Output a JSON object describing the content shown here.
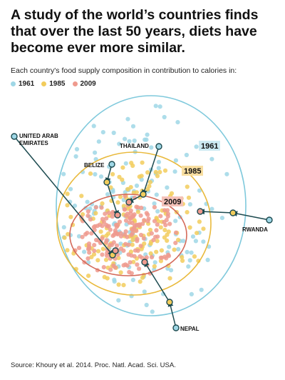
{
  "title": "A study of the world’s countries finds that over the last 50 years, diets have become ever more similar.",
  "subtitle": "Each country's food supply composition in contribution to calories in:",
  "source": "Source: Khoury et al. 2014. Proc. Natl. Acad. Sci. USA.",
  "colors": {
    "y1961": "#9fd7e6",
    "y1985": "#f2cc5c",
    "y2009": "#ef9a8e",
    "ring1961": "#7fc9dc",
    "ring1985": "#e9b93b",
    "ring2009": "#d46a5a",
    "arrow": "#1c4a4f"
  },
  "chart_data": {
    "type": "scatter",
    "series": [
      {
        "name": "1961",
        "color": "#9fd7e6"
      },
      {
        "name": "1985",
        "color": "#f2cc5c"
      },
      {
        "name": "2009",
        "color": "#ef9a8e"
      }
    ],
    "rings": [
      {
        "label": "1961",
        "color": "#7fc9dc"
      },
      {
        "label": "1985",
        "color": "#e9b93b"
      },
      {
        "label": "2009",
        "color": "#d46a5a"
      }
    ],
    "countries": [
      {
        "label": "UNITED ARAB EMIRATES",
        "label_lines": [
          "UNITED ARAB",
          "EMIRATES"
        ]
      },
      {
        "label": "BELIZE",
        "label_lines": [
          "BELIZE"
        ]
      },
      {
        "label": "THAILAND",
        "label_lines": [
          "THAILAND"
        ]
      },
      {
        "label": "RWANDA",
        "label_lines": [
          "RWANDA"
        ]
      },
      {
        "label": "NEPAL",
        "label_lines": [
          "NEPAL"
        ]
      }
    ]
  }
}
